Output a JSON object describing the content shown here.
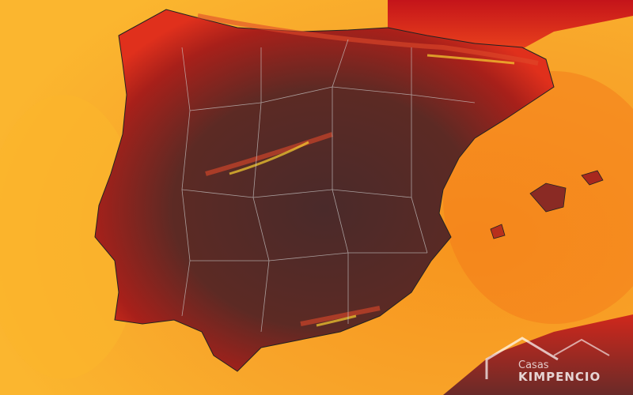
{
  "watermark": {
    "line1": "Casas",
    "line2": "KIMPENCIO"
  }
}
